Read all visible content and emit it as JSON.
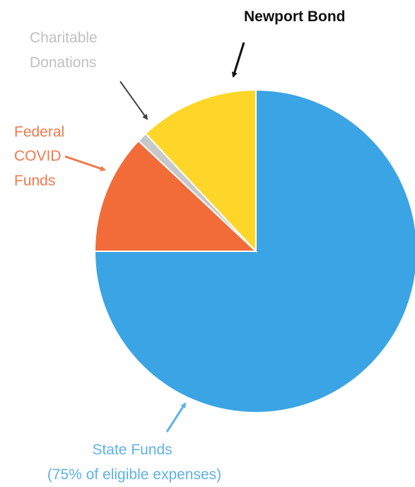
{
  "chart_data": {
    "type": "pie",
    "title": "",
    "slices": [
      {
        "name": "State Funds",
        "value": 75,
        "color": "#3aa4e4"
      },
      {
        "name": "Federal COVID Funds",
        "value": 12,
        "color": "#f26c3a"
      },
      {
        "name": "Charitable Donations",
        "value": 1,
        "color": "#c8c8c8"
      },
      {
        "name": "Newport Bond",
        "value": 12,
        "color": "#fdd629"
      }
    ],
    "labels": {
      "newport": "Newport Bond",
      "charitable": [
        "Charitable",
        "Donations"
      ],
      "federal": [
        "Federal",
        "COVID",
        "Funds"
      ],
      "state": [
        "State Funds",
        "(75% of eligible expenses)"
      ]
    },
    "label_colors": {
      "newport": "#111111",
      "charitable": "#c0c0c0",
      "federal": "#ef7a4c",
      "state": "#5fb2e8"
    },
    "legend": "none",
    "grid": false
  }
}
